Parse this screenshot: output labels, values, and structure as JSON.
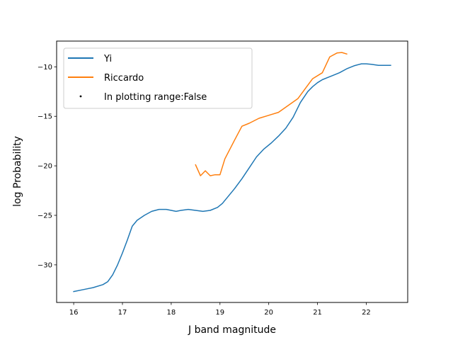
{
  "chart_data": {
    "type": "line",
    "xlabel": "J band magnitude",
    "ylabel": "log Probability",
    "xlim": [
      15.65,
      22.85
    ],
    "ylim": [
      -33.8,
      -7.4
    ],
    "xticks": [
      16,
      17,
      18,
      19,
      20,
      21,
      22
    ],
    "yticks": [
      -30,
      -25,
      -20,
      -15,
      -10
    ],
    "grid": false,
    "legend_position": "top-left",
    "series": [
      {
        "name": "Yi",
        "color": "#1f77b4",
        "x": [
          16.0,
          16.2,
          16.4,
          16.6,
          16.7,
          16.8,
          16.9,
          17.0,
          17.1,
          17.2,
          17.3,
          17.45,
          17.6,
          17.75,
          17.9,
          18.0,
          18.1,
          18.2,
          18.35,
          18.5,
          18.65,
          18.8,
          18.95,
          19.05,
          19.15,
          19.3,
          19.45,
          19.6,
          19.75,
          19.9,
          20.05,
          20.2,
          20.35,
          20.5,
          20.65,
          20.8,
          20.9,
          21.0,
          21.1,
          21.2,
          21.3,
          21.45,
          21.6,
          21.75,
          21.9,
          22.0,
          22.1,
          22.25,
          22.4,
          22.5
        ],
        "y": [
          -32.7,
          -32.5,
          -32.3,
          -32.0,
          -31.7,
          -31.0,
          -30.0,
          -28.8,
          -27.5,
          -26.1,
          -25.5,
          -25.0,
          -24.6,
          -24.4,
          -24.4,
          -24.5,
          -24.6,
          -24.5,
          -24.4,
          -24.5,
          -24.6,
          -24.5,
          -24.2,
          -23.8,
          -23.2,
          -22.3,
          -21.3,
          -20.2,
          -19.1,
          -18.3,
          -17.7,
          -17.0,
          -16.2,
          -15.1,
          -13.6,
          -12.5,
          -12.0,
          -11.6,
          -11.3,
          -11.1,
          -10.9,
          -10.6,
          -10.2,
          -9.9,
          -9.7,
          -9.7,
          -9.75,
          -9.85,
          -9.85,
          -9.85
        ]
      },
      {
        "name": "Riccardo",
        "color": "#ff7f0e",
        "x": [
          18.5,
          18.6,
          18.7,
          18.8,
          18.9,
          19.0,
          19.1,
          19.3,
          19.45,
          19.6,
          19.8,
          20.0,
          20.2,
          20.4,
          20.6,
          20.75,
          20.9,
          21.1,
          21.25,
          21.4,
          21.5,
          21.6
        ],
        "y": [
          -19.9,
          -21.0,
          -20.5,
          -21.0,
          -20.9,
          -20.9,
          -19.3,
          -17.4,
          -16.0,
          -15.7,
          -15.2,
          -14.9,
          -14.6,
          -13.9,
          -13.2,
          -12.2,
          -11.2,
          -10.6,
          -9.0,
          -8.6,
          -8.55,
          -8.7
        ]
      }
    ],
    "legend": [
      {
        "label": "Yi",
        "kind": "line",
        "color": "#1f77b4"
      },
      {
        "label": "Riccardo",
        "kind": "line",
        "color": "#ff7f0e"
      },
      {
        "label": "In plotting range:False",
        "kind": "marker",
        "color": "#000000"
      }
    ]
  }
}
